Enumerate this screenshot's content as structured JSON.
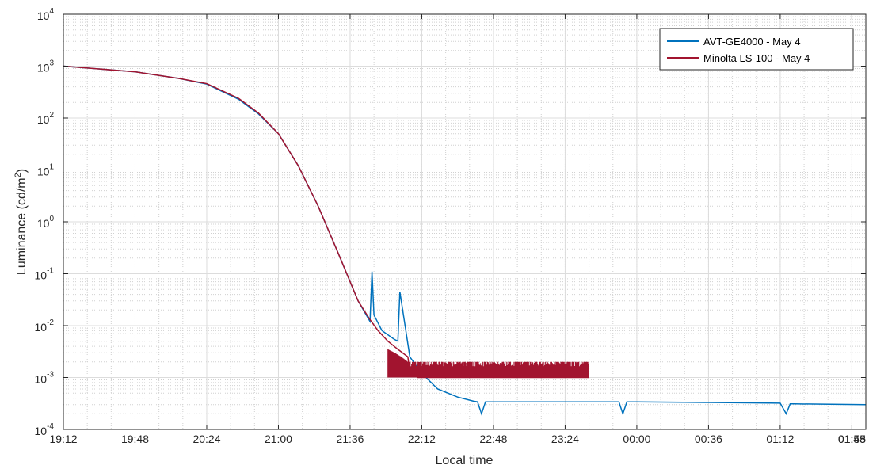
{
  "chart_data": {
    "type": "line",
    "title": "",
    "xlabel": "Local time",
    "ylabel_main": "Luminance (cd/m",
    "ylabel_sup": "2",
    "ylabel_tail": ")",
    "y_scale": "log",
    "ylim": [
      0.0001,
      10000
    ],
    "y_ticks": [
      {
        "value": 0.0001,
        "base": "10",
        "exp": "-4"
      },
      {
        "value": 0.001,
        "base": "10",
        "exp": "-3"
      },
      {
        "value": 0.01,
        "base": "10",
        "exp": "-2"
      },
      {
        "value": 0.1,
        "base": "10",
        "exp": "-1"
      },
      {
        "value": 1,
        "base": "10",
        "exp": "0"
      },
      {
        "value": 10,
        "base": "10",
        "exp": "1"
      },
      {
        "value": 100,
        "base": "10",
        "exp": "2"
      },
      {
        "value": 1000,
        "base": "10",
        "exp": "3"
      },
      {
        "value": 10000,
        "base": "10",
        "exp": "4"
      }
    ],
    "xlim": [
      "19:12",
      "01:55"
    ],
    "x_ticks": [
      "19:12",
      "19:48",
      "20:24",
      "21:00",
      "21:36",
      "22:12",
      "22:48",
      "23:24",
      "00:00",
      "00:36",
      "01:12",
      "01:48",
      "01:55"
    ],
    "grid": true,
    "minor_grid": true,
    "legend_position": "top-right",
    "series": [
      {
        "name": "AVT-GE4000 - May 4",
        "color": "#0072BD",
        "x": [
          "19:12",
          "19:48",
          "20:10",
          "20:24",
          "20:40",
          "20:50",
          "21:00",
          "21:10",
          "21:20",
          "21:30",
          "21:40",
          "21:46",
          "21:47",
          "21:48",
          "21:52",
          "21:58",
          "22:00",
          "22:01",
          "22:06",
          "22:12",
          "22:20",
          "22:30",
          "22:38",
          "22:40",
          "22:42",
          "22:44",
          "22:48",
          "23:30",
          "23:51",
          "23:53",
          "23:55",
          "00:00",
          "00:36",
          "01:12",
          "01:15",
          "01:17",
          "01:19",
          "01:55"
        ],
        "y": [
          1000,
          780,
          580,
          450,
          230,
          120,
          50,
          12,
          2,
          0.25,
          0.03,
          0.012,
          0.11,
          0.016,
          0.008,
          0.0055,
          0.005,
          0.045,
          0.0025,
          0.0012,
          0.0006,
          0.00042,
          0.00035,
          0.00034,
          0.0002,
          0.00034,
          0.00034,
          0.00034,
          0.00034,
          0.0002,
          0.00034,
          0.00034,
          0.00033,
          0.00032,
          0.0002,
          0.00031,
          0.00031,
          0.0003
        ]
      },
      {
        "name": "Minolta LS-100 - May 4",
        "color": "#A2142F",
        "x": [
          "19:12",
          "19:48",
          "20:10",
          "20:24",
          "20:40",
          "20:50",
          "21:00",
          "21:10",
          "21:20",
          "21:30",
          "21:40",
          "21:46",
          "21:50",
          "21:55",
          "22:00",
          "22:05",
          "22:06",
          "22:10",
          "22:20",
          "22:40",
          "23:00",
          "23:20",
          "23:36"
        ],
        "y": [
          1000,
          780,
          580,
          460,
          240,
          125,
          50,
          12,
          2,
          0.25,
          0.03,
          0.013,
          0.008,
          0.005,
          0.0035,
          0.0025,
          0.0012,
          0.001,
          0.001,
          0.001,
          0.001,
          0.001,
          0.001
        ],
        "noise_from": "21:55",
        "noise_to": "23:36",
        "noise_high": 0.002
      }
    ]
  }
}
